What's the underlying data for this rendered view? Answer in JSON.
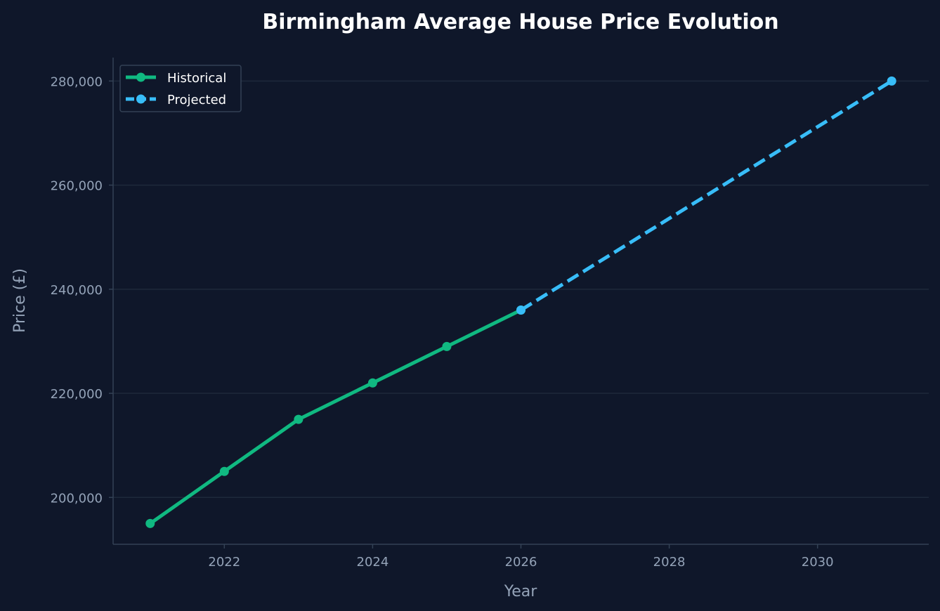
{
  "chart_data": {
    "type": "line",
    "title": "Birmingham Average House Price Evolution",
    "xlabel": "Year",
    "ylabel": "Price (£)",
    "xlim": [
      2020.5,
      2031.5
    ],
    "ylim": [
      191000,
      284500
    ],
    "x_ticks": [
      2022,
      2024,
      2026,
      2028,
      2030
    ],
    "x_tick_labels": [
      "2022",
      "2024",
      "2026",
      "2028",
      "2030"
    ],
    "y_ticks": [
      200000,
      220000,
      240000,
      260000,
      280000
    ],
    "y_tick_labels": [
      "200,000",
      "220,000",
      "240,000",
      "260,000",
      "280,000"
    ],
    "grid": "horizontal",
    "legend_position": "top-left",
    "series": [
      {
        "name": "Historical",
        "style": "solid",
        "color": "#10b981",
        "x": [
          2021,
          2022,
          2023,
          2024,
          2025,
          2026
        ],
        "values": [
          195000,
          205000,
          215000,
          222000,
          229000,
          236000
        ]
      },
      {
        "name": "Projected",
        "style": "dashed",
        "color": "#38bdf8",
        "x": [
          2026,
          2031
        ],
        "values": [
          236000,
          280000
        ]
      }
    ]
  },
  "colors": {
    "background": "#0f172a",
    "grid": "#1e293b",
    "spine": "#334155",
    "text_muted": "#94a3b8",
    "text": "#ffffff"
  }
}
